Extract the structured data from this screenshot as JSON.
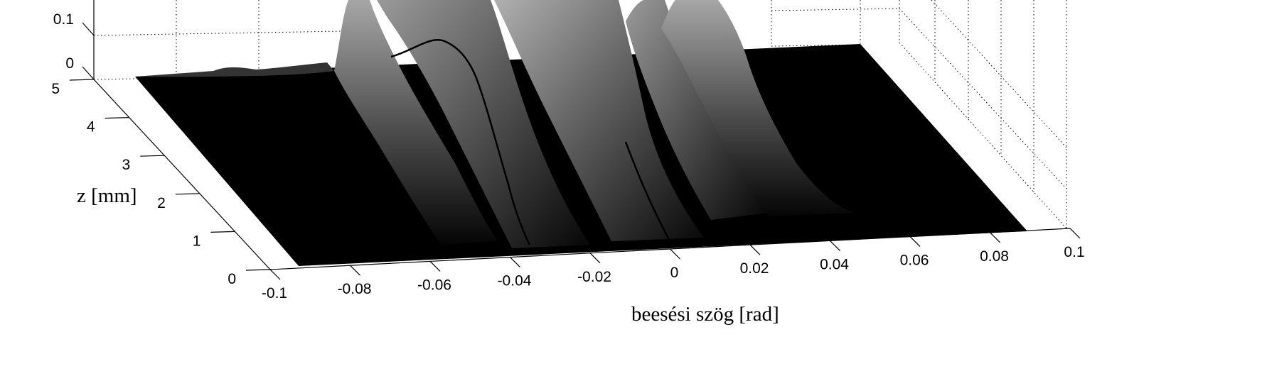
{
  "chart_data": {
    "type": "surface",
    "title": "",
    "xlabel": "beesési szög [rad]",
    "ylabel": "z [mm]",
    "zlabel": "",
    "xlim": [
      -0.1,
      0.1
    ],
    "ylim": [
      0,
      5
    ],
    "x_ticks": [
      -0.1,
      -0.08,
      -0.06,
      -0.04,
      -0.02,
      0,
      0.02,
      0.04,
      0.06,
      0.08,
      0.1
    ],
    "x_tick_labels": [
      "-0.1",
      "-0.08",
      "-0.06",
      "-0.04",
      "-0.02",
      "0",
      "0.02",
      "0.04",
      "0.06",
      "0.08",
      "0.1"
    ],
    "y_ticks": [
      0,
      1,
      2,
      3,
      4,
      5
    ],
    "y_tick_labels": [
      "0",
      "1",
      "2",
      "3",
      "4",
      "5"
    ],
    "z_ticks_visible": [
      0,
      0.1
    ],
    "z_tick_labels": [
      "0",
      "0.1"
    ],
    "grid": true,
    "colormap": "gray",
    "peaks": [
      {
        "x": -0.063,
        "z_at_back": 0.18,
        "width": 0.0035
      },
      {
        "x": -0.051,
        "z_at_back": 0.27,
        "width": 0.0035
      },
      {
        "x": -0.033,
        "z_at_back": 0.29,
        "width": 0.005
      },
      {
        "x": -0.012,
        "z_at_back": 0.2,
        "width": 0.004
      },
      {
        "x": 0.002,
        "z_at_back": 0.22,
        "width": 0.0045
      }
    ],
    "highlight_curves_x": [
      -0.04,
      0
    ]
  }
}
